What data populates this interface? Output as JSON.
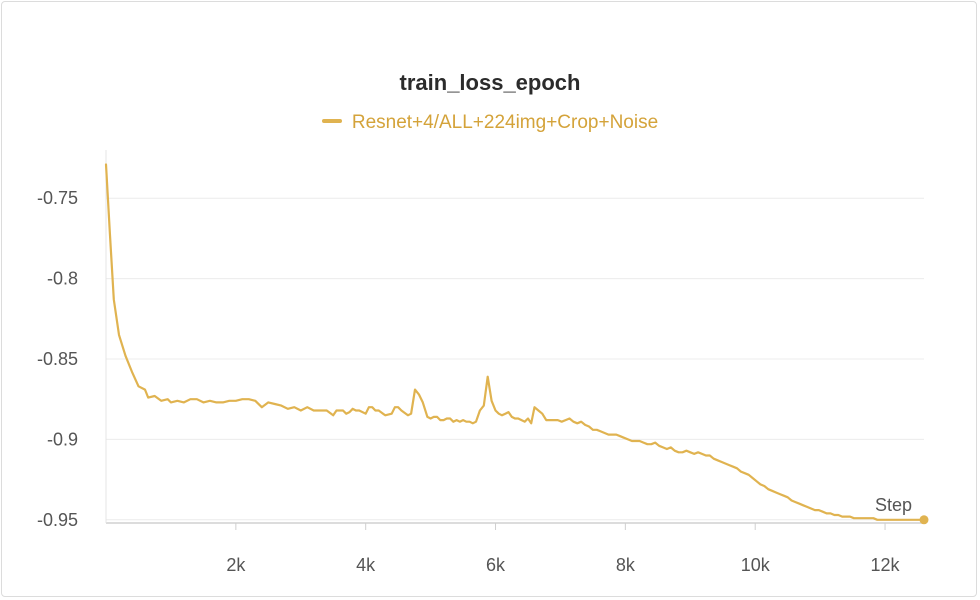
{
  "chart_data": {
    "type": "line",
    "title": "train_loss_epoch",
    "xlabel": "Step",
    "ylabel": "",
    "xlim": [
      0,
      12600
    ],
    "ylim": [
      -0.952,
      -0.72
    ],
    "x_ticks": [
      {
        "value": 2000,
        "label": "2k"
      },
      {
        "value": 4000,
        "label": "4k"
      },
      {
        "value": 6000,
        "label": "6k"
      },
      {
        "value": 8000,
        "label": "8k"
      },
      {
        "value": 10000,
        "label": "10k"
      },
      {
        "value": 12000,
        "label": "12k"
      }
    ],
    "y_ticks": [
      {
        "value": -0.75,
        "label": "-0.75"
      },
      {
        "value": -0.8,
        "label": "-0.8"
      },
      {
        "value": -0.85,
        "label": "-0.85"
      },
      {
        "value": -0.9,
        "label": "-0.9"
      },
      {
        "value": -0.95,
        "label": "-0.95"
      }
    ],
    "grid": true,
    "legend_position": "top-center",
    "series": [
      {
        "name": "Resnet+4/ALL+224img+Crop+Noise",
        "color": "#e0b350",
        "points": [
          [
            0,
            -0.729
          ],
          [
            60,
            -0.772
          ],
          [
            120,
            -0.813
          ],
          [
            200,
            -0.835
          ],
          [
            300,
            -0.848
          ],
          [
            400,
            -0.858
          ],
          [
            500,
            -0.867
          ],
          [
            600,
            -0.869
          ],
          [
            650,
            -0.874
          ],
          [
            750,
            -0.873
          ],
          [
            850,
            -0.876
          ],
          [
            950,
            -0.875
          ],
          [
            1000,
            -0.877
          ],
          [
            1100,
            -0.876
          ],
          [
            1200,
            -0.877
          ],
          [
            1300,
            -0.875
          ],
          [
            1400,
            -0.875
          ],
          [
            1500,
            -0.877
          ],
          [
            1600,
            -0.876
          ],
          [
            1700,
            -0.877
          ],
          [
            1800,
            -0.877
          ],
          [
            1900,
            -0.876
          ],
          [
            2000,
            -0.876
          ],
          [
            2100,
            -0.875
          ],
          [
            2200,
            -0.875
          ],
          [
            2300,
            -0.876
          ],
          [
            2400,
            -0.88
          ],
          [
            2500,
            -0.877
          ],
          [
            2600,
            -0.878
          ],
          [
            2700,
            -0.879
          ],
          [
            2800,
            -0.881
          ],
          [
            2900,
            -0.88
          ],
          [
            3000,
            -0.882
          ],
          [
            3100,
            -0.88
          ],
          [
            3200,
            -0.882
          ],
          [
            3300,
            -0.882
          ],
          [
            3400,
            -0.882
          ],
          [
            3500,
            -0.885
          ],
          [
            3550,
            -0.882
          ],
          [
            3650,
            -0.882
          ],
          [
            3700,
            -0.884
          ],
          [
            3750,
            -0.883
          ],
          [
            3800,
            -0.881
          ],
          [
            3850,
            -0.882
          ],
          [
            3900,
            -0.882
          ],
          [
            4000,
            -0.884
          ],
          [
            4050,
            -0.88
          ],
          [
            4100,
            -0.88
          ],
          [
            4150,
            -0.882
          ],
          [
            4200,
            -0.882
          ],
          [
            4300,
            -0.885
          ],
          [
            4400,
            -0.884
          ],
          [
            4450,
            -0.88
          ],
          [
            4500,
            -0.88
          ],
          [
            4550,
            -0.882
          ],
          [
            4650,
            -0.885
          ],
          [
            4700,
            -0.884
          ],
          [
            4760,
            -0.869
          ],
          [
            4820,
            -0.872
          ],
          [
            4880,
            -0.877
          ],
          [
            4950,
            -0.886
          ],
          [
            5000,
            -0.887
          ],
          [
            5050,
            -0.886
          ],
          [
            5100,
            -0.886
          ],
          [
            5150,
            -0.888
          ],
          [
            5200,
            -0.888
          ],
          [
            5250,
            -0.887
          ],
          [
            5300,
            -0.887
          ],
          [
            5350,
            -0.889
          ],
          [
            5400,
            -0.888
          ],
          [
            5450,
            -0.889
          ],
          [
            5500,
            -0.888
          ],
          [
            5550,
            -0.889
          ],
          [
            5600,
            -0.889
          ],
          [
            5650,
            -0.89
          ],
          [
            5700,
            -0.889
          ],
          [
            5760,
            -0.882
          ],
          [
            5820,
            -0.879
          ],
          [
            5880,
            -0.861
          ],
          [
            5940,
            -0.876
          ],
          [
            6000,
            -0.882
          ],
          [
            6050,
            -0.884
          ],
          [
            6100,
            -0.885
          ],
          [
            6150,
            -0.884
          ],
          [
            6200,
            -0.883
          ],
          [
            6250,
            -0.886
          ],
          [
            6300,
            -0.887
          ],
          [
            6350,
            -0.887
          ],
          [
            6400,
            -0.888
          ],
          [
            6450,
            -0.889
          ],
          [
            6500,
            -0.887
          ],
          [
            6550,
            -0.89
          ],
          [
            6600,
            -0.88
          ],
          [
            6660,
            -0.882
          ],
          [
            6720,
            -0.884
          ],
          [
            6780,
            -0.888
          ],
          [
            6840,
            -0.888
          ],
          [
            6900,
            -0.888
          ],
          [
            6960,
            -0.888
          ],
          [
            7020,
            -0.889
          ],
          [
            7080,
            -0.888
          ],
          [
            7140,
            -0.887
          ],
          [
            7200,
            -0.889
          ],
          [
            7260,
            -0.89
          ],
          [
            7320,
            -0.889
          ],
          [
            7380,
            -0.891
          ],
          [
            7440,
            -0.892
          ],
          [
            7500,
            -0.894
          ],
          [
            7560,
            -0.894
          ],
          [
            7620,
            -0.895
          ],
          [
            7680,
            -0.896
          ],
          [
            7740,
            -0.897
          ],
          [
            7800,
            -0.897
          ],
          [
            7860,
            -0.897
          ],
          [
            7920,
            -0.898
          ],
          [
            7980,
            -0.899
          ],
          [
            8040,
            -0.9
          ],
          [
            8100,
            -0.901
          ],
          [
            8160,
            -0.901
          ],
          [
            8220,
            -0.901
          ],
          [
            8280,
            -0.902
          ],
          [
            8340,
            -0.903
          ],
          [
            8400,
            -0.903
          ],
          [
            8460,
            -0.902
          ],
          [
            8520,
            -0.904
          ],
          [
            8580,
            -0.905
          ],
          [
            8640,
            -0.906
          ],
          [
            8700,
            -0.905
          ],
          [
            8760,
            -0.907
          ],
          [
            8820,
            -0.908
          ],
          [
            8880,
            -0.908
          ],
          [
            8940,
            -0.907
          ],
          [
            9000,
            -0.908
          ],
          [
            9060,
            -0.909
          ],
          [
            9120,
            -0.908
          ],
          [
            9180,
            -0.909
          ],
          [
            9240,
            -0.91
          ],
          [
            9300,
            -0.91
          ],
          [
            9360,
            -0.912
          ],
          [
            9420,
            -0.913
          ],
          [
            9480,
            -0.914
          ],
          [
            9540,
            -0.915
          ],
          [
            9600,
            -0.916
          ],
          [
            9660,
            -0.917
          ],
          [
            9720,
            -0.918
          ],
          [
            9780,
            -0.92
          ],
          [
            9840,
            -0.921
          ],
          [
            9900,
            -0.922
          ],
          [
            9960,
            -0.924
          ],
          [
            10020,
            -0.926
          ],
          [
            10080,
            -0.928
          ],
          [
            10140,
            -0.929
          ],
          [
            10200,
            -0.931
          ],
          [
            10260,
            -0.932
          ],
          [
            10320,
            -0.933
          ],
          [
            10380,
            -0.934
          ],
          [
            10440,
            -0.935
          ],
          [
            10500,
            -0.936
          ],
          [
            10560,
            -0.938
          ],
          [
            10620,
            -0.939
          ],
          [
            10680,
            -0.94
          ],
          [
            10740,
            -0.941
          ],
          [
            10800,
            -0.942
          ],
          [
            10860,
            -0.943
          ],
          [
            10920,
            -0.944
          ],
          [
            10980,
            -0.944
          ],
          [
            11040,
            -0.945
          ],
          [
            11100,
            -0.946
          ],
          [
            11160,
            -0.946
          ],
          [
            11220,
            -0.947
          ],
          [
            11280,
            -0.947
          ],
          [
            11340,
            -0.948
          ],
          [
            11400,
            -0.948
          ],
          [
            11460,
            -0.948
          ],
          [
            11520,
            -0.949
          ],
          [
            11580,
            -0.949
          ],
          [
            11640,
            -0.949
          ],
          [
            11700,
            -0.949
          ],
          [
            11760,
            -0.949
          ],
          [
            11820,
            -0.949
          ],
          [
            11880,
            -0.95
          ],
          [
            11940,
            -0.95
          ],
          [
            12000,
            -0.95
          ],
          [
            12060,
            -0.95
          ],
          [
            12120,
            -0.95
          ],
          [
            12180,
            -0.95
          ],
          [
            12240,
            -0.95
          ],
          [
            12300,
            -0.95
          ],
          [
            12360,
            -0.95
          ],
          [
            12420,
            -0.95
          ],
          [
            12480,
            -0.95
          ],
          [
            12540,
            -0.95
          ],
          [
            12600,
            -0.95
          ]
        ]
      }
    ]
  }
}
